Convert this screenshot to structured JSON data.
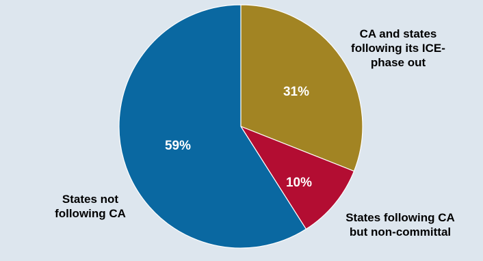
{
  "chart_data": {
    "type": "pie",
    "title": "",
    "slices": [
      {
        "label_lines": [
          "CA and states",
          "following its ICE-",
          "phase out"
        ],
        "value": 31,
        "value_label": "31%",
        "color": "#a28423"
      },
      {
        "label_lines": [
          "States following CA",
          "but non-committal"
        ],
        "value": 10,
        "value_label": "10%",
        "color": "#b30d32"
      },
      {
        "label_lines": [
          "States not",
          "following CA"
        ],
        "value": 59,
        "value_label": "59%",
        "color": "#0a68a1"
      }
    ],
    "start_angle_deg": 0,
    "direction": "clockwise",
    "legend": "none"
  },
  "colors": {
    "background": "#dde6ee",
    "slice_border": "#ffffff",
    "value_text": "#ffffff",
    "category_text": "#000000"
  }
}
